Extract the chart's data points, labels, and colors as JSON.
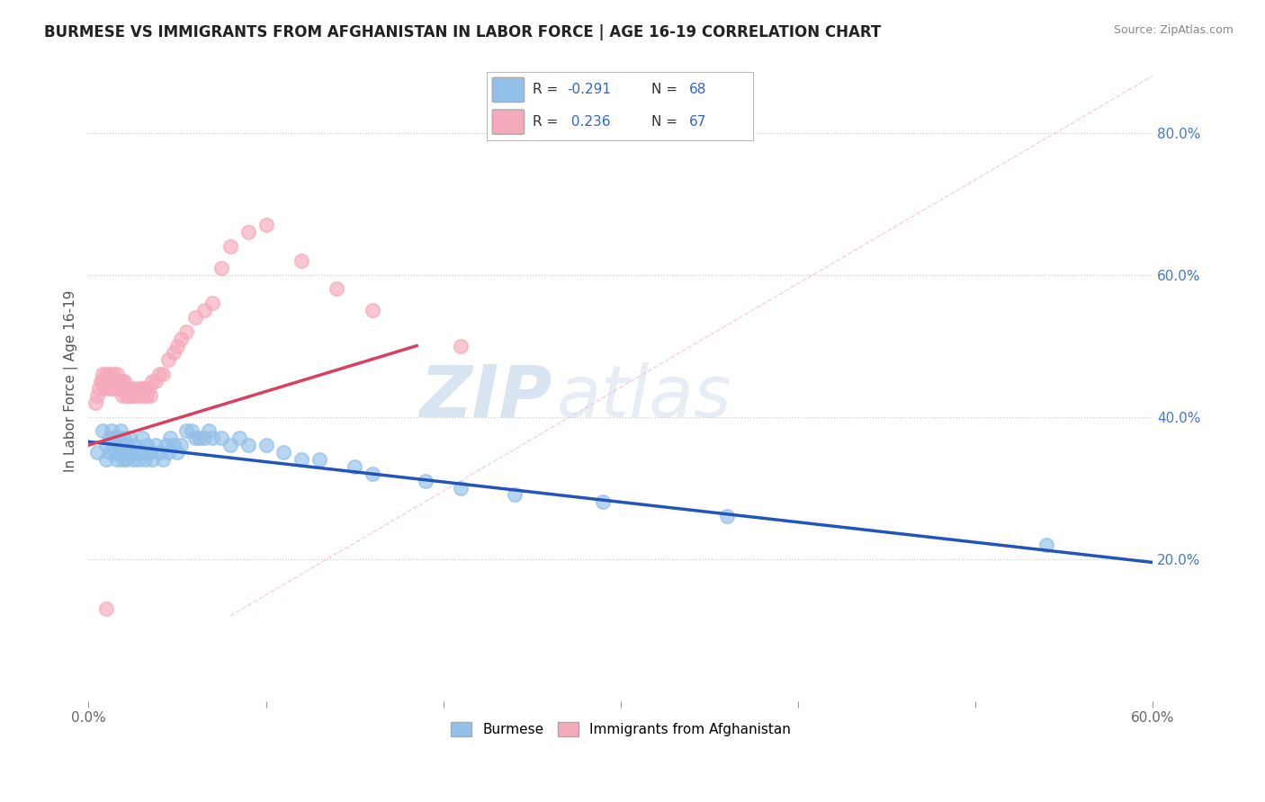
{
  "title": "BURMESE VS IMMIGRANTS FROM AFGHANISTAN IN LABOR FORCE | AGE 16-19 CORRELATION CHART",
  "source": "Source: ZipAtlas.com",
  "ylabel": "In Labor Force | Age 16-19",
  "xlim": [
    0.0,
    0.6
  ],
  "ylim": [
    0.0,
    0.9
  ],
  "xticks": [
    0.0,
    0.1,
    0.2,
    0.3,
    0.4,
    0.5,
    0.6
  ],
  "xticklabels": [
    "0.0%",
    "",
    "",
    "",
    "",
    "",
    "60.0%"
  ],
  "yticks_right": [
    0.2,
    0.4,
    0.6,
    0.8
  ],
  "ytick_right_labels": [
    "20.0%",
    "40.0%",
    "60.0%",
    "80.0%"
  ],
  "blue_color": "#92C0E8",
  "pink_color": "#F5AABB",
  "blue_line_color": "#2255BB",
  "pink_line_color": "#D94060",
  "dashed_line_color": "#F5AABB",
  "watermark_zip": "ZIP",
  "watermark_atlas": "atlas",
  "legend_label_blue": "Burmese",
  "legend_label_pink": "Immigrants from Afghanistan",
  "blue_scatter_x": [
    0.005,
    0.008,
    0.01,
    0.01,
    0.012,
    0.012,
    0.013,
    0.014,
    0.015,
    0.015,
    0.016,
    0.016,
    0.017,
    0.017,
    0.018,
    0.018,
    0.019,
    0.019,
    0.02,
    0.02,
    0.021,
    0.021,
    0.022,
    0.022,
    0.023,
    0.024,
    0.025,
    0.026,
    0.027,
    0.028,
    0.03,
    0.031,
    0.032,
    0.033,
    0.035,
    0.036,
    0.038,
    0.04,
    0.042,
    0.044,
    0.045,
    0.046,
    0.048,
    0.05,
    0.052,
    0.055,
    0.058,
    0.06,
    0.062,
    0.065,
    0.068,
    0.07,
    0.075,
    0.08,
    0.085,
    0.09,
    0.1,
    0.11,
    0.12,
    0.13,
    0.15,
    0.16,
    0.19,
    0.21,
    0.24,
    0.29,
    0.36,
    0.54
  ],
  "blue_scatter_y": [
    0.35,
    0.38,
    0.36,
    0.34,
    0.37,
    0.35,
    0.38,
    0.36,
    0.35,
    0.37,
    0.36,
    0.34,
    0.37,
    0.35,
    0.36,
    0.38,
    0.35,
    0.34,
    0.36,
    0.37,
    0.35,
    0.34,
    0.36,
    0.35,
    0.37,
    0.35,
    0.34,
    0.36,
    0.35,
    0.34,
    0.37,
    0.35,
    0.34,
    0.36,
    0.35,
    0.34,
    0.36,
    0.35,
    0.34,
    0.36,
    0.35,
    0.37,
    0.36,
    0.35,
    0.36,
    0.38,
    0.38,
    0.37,
    0.37,
    0.37,
    0.38,
    0.37,
    0.37,
    0.36,
    0.37,
    0.36,
    0.36,
    0.35,
    0.34,
    0.34,
    0.33,
    0.32,
    0.31,
    0.3,
    0.29,
    0.28,
    0.26,
    0.22
  ],
  "pink_scatter_x": [
    0.004,
    0.005,
    0.006,
    0.007,
    0.008,
    0.008,
    0.009,
    0.01,
    0.01,
    0.011,
    0.012,
    0.012,
    0.013,
    0.013,
    0.014,
    0.014,
    0.015,
    0.015,
    0.016,
    0.016,
    0.017,
    0.017,
    0.018,
    0.018,
    0.019,
    0.019,
    0.02,
    0.02,
    0.021,
    0.021,
    0.022,
    0.022,
    0.023,
    0.023,
    0.024,
    0.025,
    0.026,
    0.027,
    0.028,
    0.029,
    0.03,
    0.031,
    0.032,
    0.033,
    0.034,
    0.035,
    0.036,
    0.038,
    0.04,
    0.042,
    0.045,
    0.048,
    0.05,
    0.052,
    0.055,
    0.06,
    0.065,
    0.07,
    0.075,
    0.08,
    0.09,
    0.1,
    0.12,
    0.14,
    0.16,
    0.21,
    0.01
  ],
  "pink_scatter_y": [
    0.42,
    0.43,
    0.44,
    0.45,
    0.46,
    0.45,
    0.44,
    0.45,
    0.46,
    0.45,
    0.44,
    0.46,
    0.45,
    0.44,
    0.45,
    0.46,
    0.45,
    0.44,
    0.45,
    0.46,
    0.45,
    0.44,
    0.45,
    0.44,
    0.43,
    0.45,
    0.45,
    0.44,
    0.44,
    0.43,
    0.44,
    0.43,
    0.43,
    0.44,
    0.43,
    0.43,
    0.44,
    0.43,
    0.43,
    0.44,
    0.44,
    0.43,
    0.44,
    0.43,
    0.44,
    0.43,
    0.45,
    0.45,
    0.46,
    0.46,
    0.48,
    0.49,
    0.5,
    0.51,
    0.52,
    0.54,
    0.55,
    0.56,
    0.61,
    0.64,
    0.66,
    0.67,
    0.62,
    0.58,
    0.55,
    0.5,
    0.13
  ],
  "blue_trendline_x": [
    0.0,
    0.6
  ],
  "blue_trendline_y": [
    0.365,
    0.195
  ],
  "pink_trendline_x": [
    0.0,
    0.185
  ],
  "pink_trendline_y": [
    0.36,
    0.5
  ],
  "dashed_line_x": [
    0.08,
    0.6
  ],
  "dashed_line_y": [
    0.12,
    0.88
  ],
  "background_color": "#FFFFFF",
  "grid_color": "#CCCCCC"
}
